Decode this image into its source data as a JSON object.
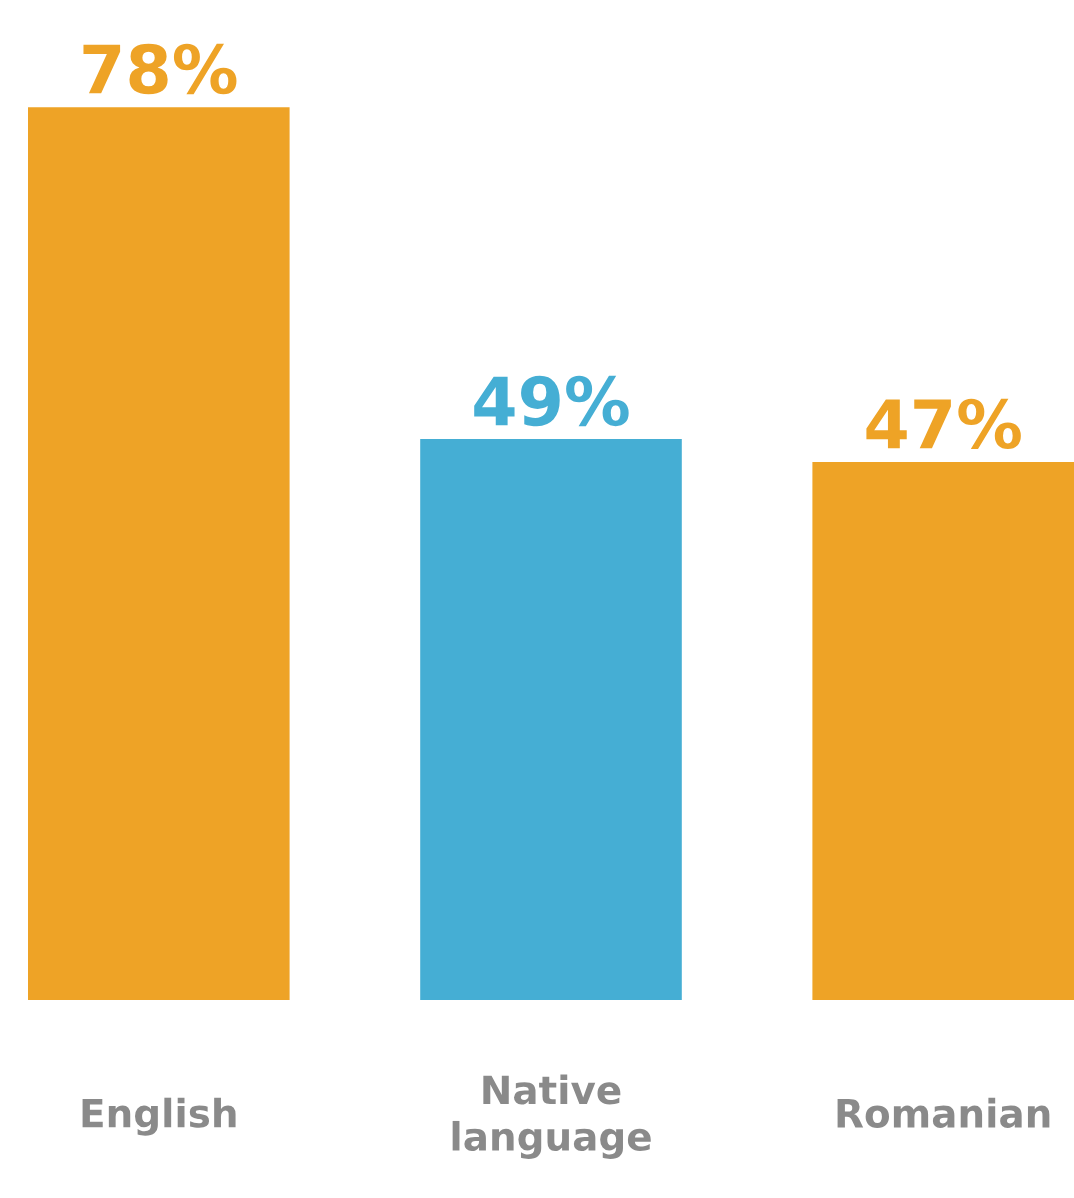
{
  "chart_data": {
    "type": "bar",
    "categories": [
      "English",
      "Native\nlanguage",
      "Romanian"
    ],
    "values": [
      78,
      49,
      47
    ],
    "colors": [
      "#eea326",
      "#45aed4",
      "#eea326"
    ],
    "value_labels": [
      "78%",
      "49%",
      "47%"
    ],
    "grid": false,
    "legend": false
  }
}
